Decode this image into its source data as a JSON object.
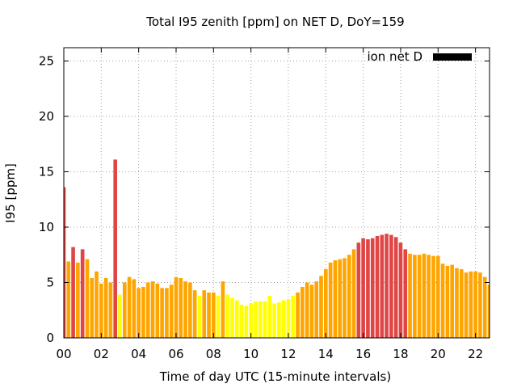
{
  "chart_data": {
    "type": "bar",
    "title": "Total I95 zenith [ppm] on NET D, DoY=159",
    "xlabel": "Time of day UTC (15-minute intervals)",
    "ylabel": "I95 [ppm]",
    "xlim": [
      0,
      22.75
    ],
    "ylim": [
      0,
      26.2
    ],
    "x_ticks": [
      {
        "value": 0,
        "label": "00"
      },
      {
        "value": 2,
        "label": "02"
      },
      {
        "value": 4,
        "label": "04"
      },
      {
        "value": 6,
        "label": "06"
      },
      {
        "value": 8,
        "label": "08"
      },
      {
        "value": 10,
        "label": "10"
      },
      {
        "value": 12,
        "label": "12"
      },
      {
        "value": 14,
        "label": "14"
      },
      {
        "value": 16,
        "label": "16"
      },
      {
        "value": 18,
        "label": "18"
      },
      {
        "value": 20,
        "label": "20"
      },
      {
        "value": 22,
        "label": "22"
      }
    ],
    "y_ticks": [
      {
        "value": 0,
        "label": "0"
      },
      {
        "value": 5,
        "label": "5"
      },
      {
        "value": 10,
        "label": "10"
      },
      {
        "value": 15,
        "label": "15"
      },
      {
        "value": 20,
        "label": "20"
      },
      {
        "value": 25,
        "label": "25"
      }
    ],
    "grid": true,
    "legend": {
      "position": "top-right",
      "label": "ion net D",
      "color": "#000000"
    },
    "colors": {
      "low": "#ffff00",
      "medium": "#ffa500",
      "high": "#e04646"
    },
    "bar_width_hours": 0.2,
    "series": [
      {
        "x": [
          0,
          0.25,
          0.5,
          0.75,
          1,
          1.25,
          1.5,
          1.75,
          2,
          2.25,
          2.5,
          2.75,
          3,
          3.25,
          3.5,
          3.75,
          4,
          4.25,
          4.5,
          4.75,
          5,
          5.25,
          5.5,
          5.75,
          6,
          6.25,
          6.5,
          6.75,
          7,
          7.25,
          7.5,
          7.75,
          8,
          8.25,
          8.5,
          8.75,
          9,
          9.25,
          9.5,
          9.75,
          10,
          10.25,
          10.5,
          10.75,
          11,
          11.25,
          11.5,
          11.75,
          12,
          12.25,
          12.5,
          12.75,
          13,
          13.25,
          13.5,
          13.75,
          14,
          14.25,
          14.5,
          14.75,
          15,
          15.25,
          15.5,
          15.75,
          16,
          16.25,
          16.5,
          16.75,
          17,
          17.25,
          17.5,
          17.75,
          18,
          18.25,
          18.5,
          18.75,
          19,
          19.25,
          19.5,
          19.75,
          20,
          20.25,
          20.5,
          20.75,
          21,
          21.25,
          21.5,
          21.75,
          22,
          22.25,
          22.5,
          22.75
        ],
        "values": [
          13.6,
          6.9,
          8.2,
          6.8,
          8.0,
          7.1,
          5.4,
          6.0,
          4.9,
          5.4,
          5.0,
          16.1,
          3.9,
          5.0,
          5.5,
          5.3,
          4.5,
          4.6,
          5.0,
          5.1,
          4.9,
          4.5,
          4.5,
          4.8,
          5.5,
          5.4,
          5.1,
          5.0,
          4.3,
          3.8,
          4.3,
          4.1,
          4.1,
          3.8,
          5.1,
          3.9,
          3.6,
          3.4,
          3.0,
          2.9,
          3.1,
          3.3,
          3.3,
          3.3,
          3.8,
          3.1,
          3.2,
          3.4,
          3.5,
          3.8,
          4.1,
          4.6,
          5.0,
          4.8,
          5.1,
          5.6,
          6.2,
          6.8,
          7.0,
          7.1,
          7.2,
          7.5,
          8.0,
          8.6,
          9.0,
          8.9,
          9.0,
          9.2,
          9.3,
          9.4,
          9.3,
          9.1,
          8.6,
          8.0,
          7.6,
          7.5,
          7.5,
          7.6,
          7.5,
          7.4,
          7.4,
          6.7,
          6.5,
          6.6,
          6.3,
          6.2,
          5.9,
          6.0,
          6.0,
          5.9,
          5.5,
          4.8
        ],
        "colors": [
          "high",
          "medium",
          "high",
          "medium",
          "high",
          "medium",
          "medium",
          "medium",
          "medium",
          "medium",
          "medium",
          "high",
          "low",
          "medium",
          "medium",
          "medium",
          "medium",
          "medium",
          "medium",
          "medium",
          "medium",
          "medium",
          "medium",
          "medium",
          "medium",
          "medium",
          "medium",
          "medium",
          "medium",
          "low",
          "medium",
          "medium",
          "medium",
          "low",
          "medium",
          "low",
          "low",
          "low",
          "low",
          "low",
          "low",
          "low",
          "low",
          "low",
          "low",
          "low",
          "low",
          "low",
          "low",
          "low",
          "medium",
          "medium",
          "medium",
          "medium",
          "medium",
          "medium",
          "medium",
          "medium",
          "medium",
          "medium",
          "medium",
          "medium",
          "medium",
          "high",
          "high",
          "high",
          "high",
          "high",
          "high",
          "high",
          "high",
          "high",
          "high",
          "high",
          "medium",
          "medium",
          "medium",
          "medium",
          "medium",
          "medium",
          "medium",
          "medium",
          "medium",
          "medium",
          "medium",
          "medium",
          "medium",
          "medium",
          "medium",
          "medium",
          "medium",
          "medium"
        ]
      }
    ]
  }
}
